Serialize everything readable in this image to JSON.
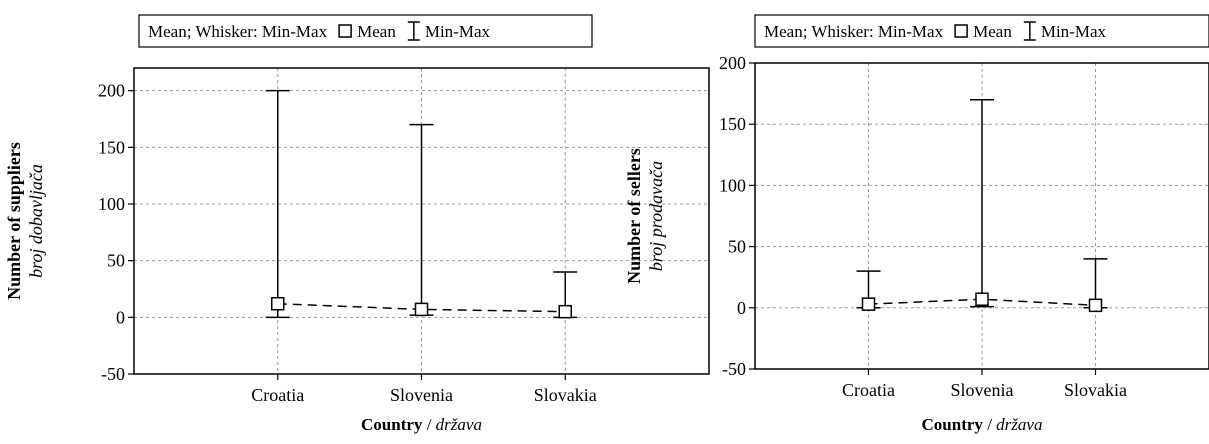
{
  "chart_data": [
    {
      "type": "box",
      "legend": {
        "text": "Mean; Whisker: Min-Max",
        "mean_label": "Mean",
        "minmax_label": "Min-Max"
      },
      "xlabel": {
        "bold": "Country",
        "separator": " / ",
        "italic": "država"
      },
      "ylabel": {
        "bold": "Number of suppliers",
        "italic": "broj dobavljača"
      },
      "ylim": [
        -50,
        220
      ],
      "yticks": [
        -50,
        0,
        50,
        100,
        150,
        200
      ],
      "grid": true,
      "categories": [
        "Croatia",
        "Slovenia",
        "Slovakia"
      ],
      "mean": [
        12,
        7,
        5
      ],
      "min": [
        0,
        2,
        0
      ],
      "max": [
        200,
        170,
        40
      ]
    },
    {
      "type": "box",
      "legend": {
        "text": "Mean; Whisker: Min-Max",
        "mean_label": "Mean",
        "minmax_label": "Min-Max"
      },
      "xlabel": {
        "bold": "Country",
        "separator": " / ",
        "italic": "država"
      },
      "ylabel": {
        "bold": "Number of sellers",
        "italic": "broj prodavača"
      },
      "ylim": [
        -50,
        200
      ],
      "yticks": [
        -50,
        0,
        50,
        100,
        150,
        200
      ],
      "grid": true,
      "categories": [
        "Croatia",
        "Slovenia",
        "Slovakia"
      ],
      "mean": [
        3,
        7,
        2
      ],
      "min": [
        0,
        1,
        0
      ],
      "max": [
        30,
        170,
        40
      ]
    }
  ]
}
